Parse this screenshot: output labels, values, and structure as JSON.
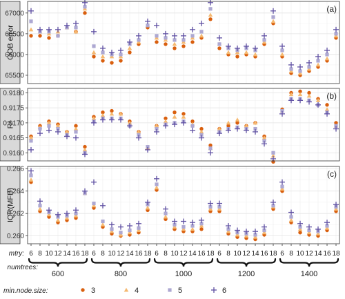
{
  "chart_data": {
    "type": "scatter",
    "facet_by": "metric",
    "x_axis": {
      "row_label": "mtry:",
      "tick_labels": [
        "6",
        "8",
        "10",
        "12",
        "14",
        "16",
        "18"
      ],
      "group_label": "numtrees:",
      "groups": [
        "600",
        "800",
        "1000",
        "1200",
        "1400"
      ]
    },
    "legend": {
      "title": "min.node.size:",
      "position": "bottom",
      "entries": [
        {
          "label": "3",
          "shape": "circle",
          "color": "#D95F0E"
        },
        {
          "label": "4",
          "shape": "triangle",
          "color": "#F5B971"
        },
        {
          "label": "5",
          "shape": "square",
          "color": "#ADA8D2"
        },
        {
          "label": "6",
          "shape": "plus",
          "color": "#5E4FA2"
        }
      ]
    },
    "panels": [
      {
        "ylabel": "OOB error",
        "tag": "(a)",
        "ylim": [
          65300,
          67280
        ],
        "yticks": [
          65500,
          66000,
          66500,
          67000
        ],
        "series": [
          {
            "node_size": "3",
            "values": [
              66450,
              66450,
              66400,
              66450,
              66650,
              66550,
              67000,
              65950,
              65850,
              65800,
              65850,
              66050,
              66250,
              66650,
              66300,
              66250,
              66150,
              66200,
              66300,
              66400,
              66850,
              66150,
              66000,
              65950,
              66000,
              65950,
              66250,
              66750,
              65950,
              65550,
              65500,
              65600,
              65700,
              65850,
              66400
            ]
          },
          {
            "node_size": "4",
            "values": [
              66600,
              66550,
              66500,
              66550,
              66650,
              66550,
              67100,
              66050,
              65950,
              65950,
              65950,
              66150,
              66300,
              66700,
              66400,
              66350,
              66250,
              66300,
              66400,
              66450,
              66950,
              66250,
              66050,
              66050,
              66050,
              66000,
              66300,
              66800,
              66000,
              65600,
              65550,
              65650,
              65750,
              65900,
              66450
            ]
          },
          {
            "node_size": "5",
            "values": [
              66800,
              66550,
              66550,
              66450,
              66650,
              66650,
              67150,
              66200,
              66050,
              66000,
              66000,
              66250,
              66350,
              66700,
              66450,
              66400,
              66350,
              66350,
              66450,
              66550,
              67100,
              66250,
              66150,
              66100,
              66150,
              66100,
              66350,
              66900,
              66100,
              65650,
              65600,
              65700,
              65850,
              66000,
              66500
            ]
          },
          {
            "node_size": "6",
            "values": [
              67050,
              66600,
              66600,
              66600,
              66700,
              66750,
              67250,
              66550,
              66150,
              66050,
              66100,
              66300,
              66450,
              66800,
              66700,
              66500,
              66450,
              66450,
              66600,
              66750,
              67250,
              66400,
              66200,
              66150,
              66200,
              66150,
              66450,
              67050,
              66200,
              65750,
              65700,
              65800,
              65950,
              66100,
              66600
            ]
          }
        ]
      },
      {
        "ylabel": "R²",
        "tag": "(b)",
        "ylim": [
          0.91573,
          0.91815
        ],
        "yticks": [
          0.916,
          0.9165,
          0.917,
          0.9175,
          0.918
        ],
        "ytick_labels": [
          "0.9160",
          "0.9165",
          "0.9170",
          "0.9175",
          "0.9180"
        ],
        "series": [
          {
            "node_size": "3",
            "values": [
              0.91655,
              0.9169,
              0.91705,
              0.91695,
              0.9167,
              0.9169,
              0.9162,
              0.9172,
              0.91735,
              0.9174,
              0.9173,
              0.91705,
              0.9167,
              0.91615,
              0.9169,
              0.91715,
              0.91735,
              0.9173,
              0.91705,
              0.9168,
              0.91625,
              0.9168,
              0.9169,
              0.917,
              0.9169,
              0.917,
              0.91655,
              0.9157,
              0.91745,
              0.918,
              0.91805,
              0.918,
              0.9178,
              0.9176,
              0.917
            ]
          },
          {
            "node_size": "4",
            "values": [
              0.9165,
              0.91685,
              0.917,
              0.9169,
              0.9167,
              0.9168,
              0.9161,
              0.91715,
              0.91725,
              0.9173,
              0.9173,
              0.917,
              0.9167,
              0.91615,
              0.9169,
              0.91705,
              0.9172,
              0.9172,
              0.91695,
              0.9167,
              0.91615,
              0.9168,
              0.917,
              0.9171,
              0.9169,
              0.917,
              0.9165,
              0.9159,
              0.9174,
              0.91795,
              0.91795,
              0.9179,
              0.91775,
              0.91745,
              0.9169
            ]
          },
          {
            "node_size": "5",
            "values": [
              0.9164,
              0.9168,
              0.9169,
              0.9168,
              0.9166,
              0.9167,
              0.916,
              0.91705,
              0.91715,
              0.91715,
              0.91715,
              0.9169,
              0.9166,
              0.9162,
              0.9168,
              0.91695,
              0.917,
              0.91705,
              0.9169,
              0.9166,
              0.91615,
              0.9167,
              0.9168,
              0.91685,
              0.9168,
              0.9168,
              0.9164,
              0.916,
              0.9174,
              0.9178,
              0.9178,
              0.91775,
              0.9176,
              0.91735,
              0.9169
            ]
          },
          {
            "node_size": "6",
            "values": [
              0.9161,
              0.91665,
              0.91675,
              0.9167,
              0.91655,
              0.9165,
              0.91595,
              0.917,
              0.9171,
              0.9171,
              0.9171,
              0.9169,
              0.9165,
              0.9161,
              0.9167,
              0.9169,
              0.91695,
              0.917,
              0.91675,
              0.9165,
              0.916,
              0.91665,
              0.91675,
              0.9168,
              0.91675,
              0.9167,
              0.9163,
              0.9158,
              0.9173,
              0.91775,
              0.91775,
              0.9177,
              0.9176,
              0.9173,
              0.9168
            ]
          }
        ]
      },
      {
        "ylabel": "IQR(MFB)",
        "tag": "(c)",
        "ylim": [
          0.2593,
          0.2662
        ],
        "yticks": [
          0.26,
          0.262,
          0.264,
          0.266
        ],
        "ytick_labels": [
          "0.260",
          "0.262",
          "0.264",
          "0.266"
        ],
        "series": [
          {
            "node_size": "3",
            "values": [
              0.2648,
              0.2622,
              0.2617,
              0.2612,
              0.2614,
              0.2616,
              0.2638,
              0.2625,
              0.2608,
              0.2602,
              0.26,
              0.2601,
              0.2603,
              0.2623,
              0.2641,
              0.2615,
              0.2606,
              0.2604,
              0.2604,
              0.2606,
              0.2622,
              0.2622,
              0.2602,
              0.2599,
              0.2598,
              0.2597,
              0.2601,
              0.2624,
              0.264,
              0.2612,
              0.2603,
              0.2601,
              0.26,
              0.2605,
              0.2622
            ]
          },
          {
            "node_size": "4",
            "values": [
              0.265,
              0.2624,
              0.2619,
              0.2614,
              0.2616,
              0.2618,
              0.2638,
              0.2627,
              0.261,
              0.2604,
              0.2601,
              0.2603,
              0.2605,
              0.2625,
              0.2643,
              0.2617,
              0.2608,
              0.2606,
              0.2606,
              0.2609,
              0.2624,
              0.2624,
              0.2604,
              0.2601,
              0.26,
              0.2599,
              0.2603,
              0.2626,
              0.2642,
              0.2614,
              0.2606,
              0.2603,
              0.2602,
              0.2607,
              0.2624
            ]
          },
          {
            "node_size": "5",
            "values": [
              0.2654,
              0.2627,
              0.2621,
              0.2617,
              0.2618,
              0.262,
              0.2638,
              0.2629,
              0.2613,
              0.2606,
              0.2603,
              0.2605,
              0.2607,
              0.2628,
              0.2646,
              0.262,
              0.261,
              0.2608,
              0.2609,
              0.2611,
              0.2626,
              0.2626,
              0.2606,
              0.2603,
              0.2602,
              0.2601,
              0.2605,
              0.2627,
              0.2644,
              0.2617,
              0.2608,
              0.2605,
              0.2604,
              0.2609,
              0.2626
            ]
          },
          {
            "node_size": "6",
            "values": [
              0.2658,
              0.2631,
              0.2623,
              0.2619,
              0.262,
              0.2623,
              0.264,
              0.2648,
              0.2627,
              0.261,
              0.2608,
              0.2609,
              0.2611,
              0.263,
              0.2651,
              0.2624,
              0.2613,
              0.2613,
              0.2612,
              0.2614,
              0.2629,
              0.2629,
              0.2609,
              0.2605,
              0.2604,
              0.2604,
              0.2608,
              0.263,
              0.2648,
              0.2621,
              0.2611,
              0.2608,
              0.2606,
              0.2612,
              0.2628
            ]
          }
        ]
      }
    ]
  }
}
